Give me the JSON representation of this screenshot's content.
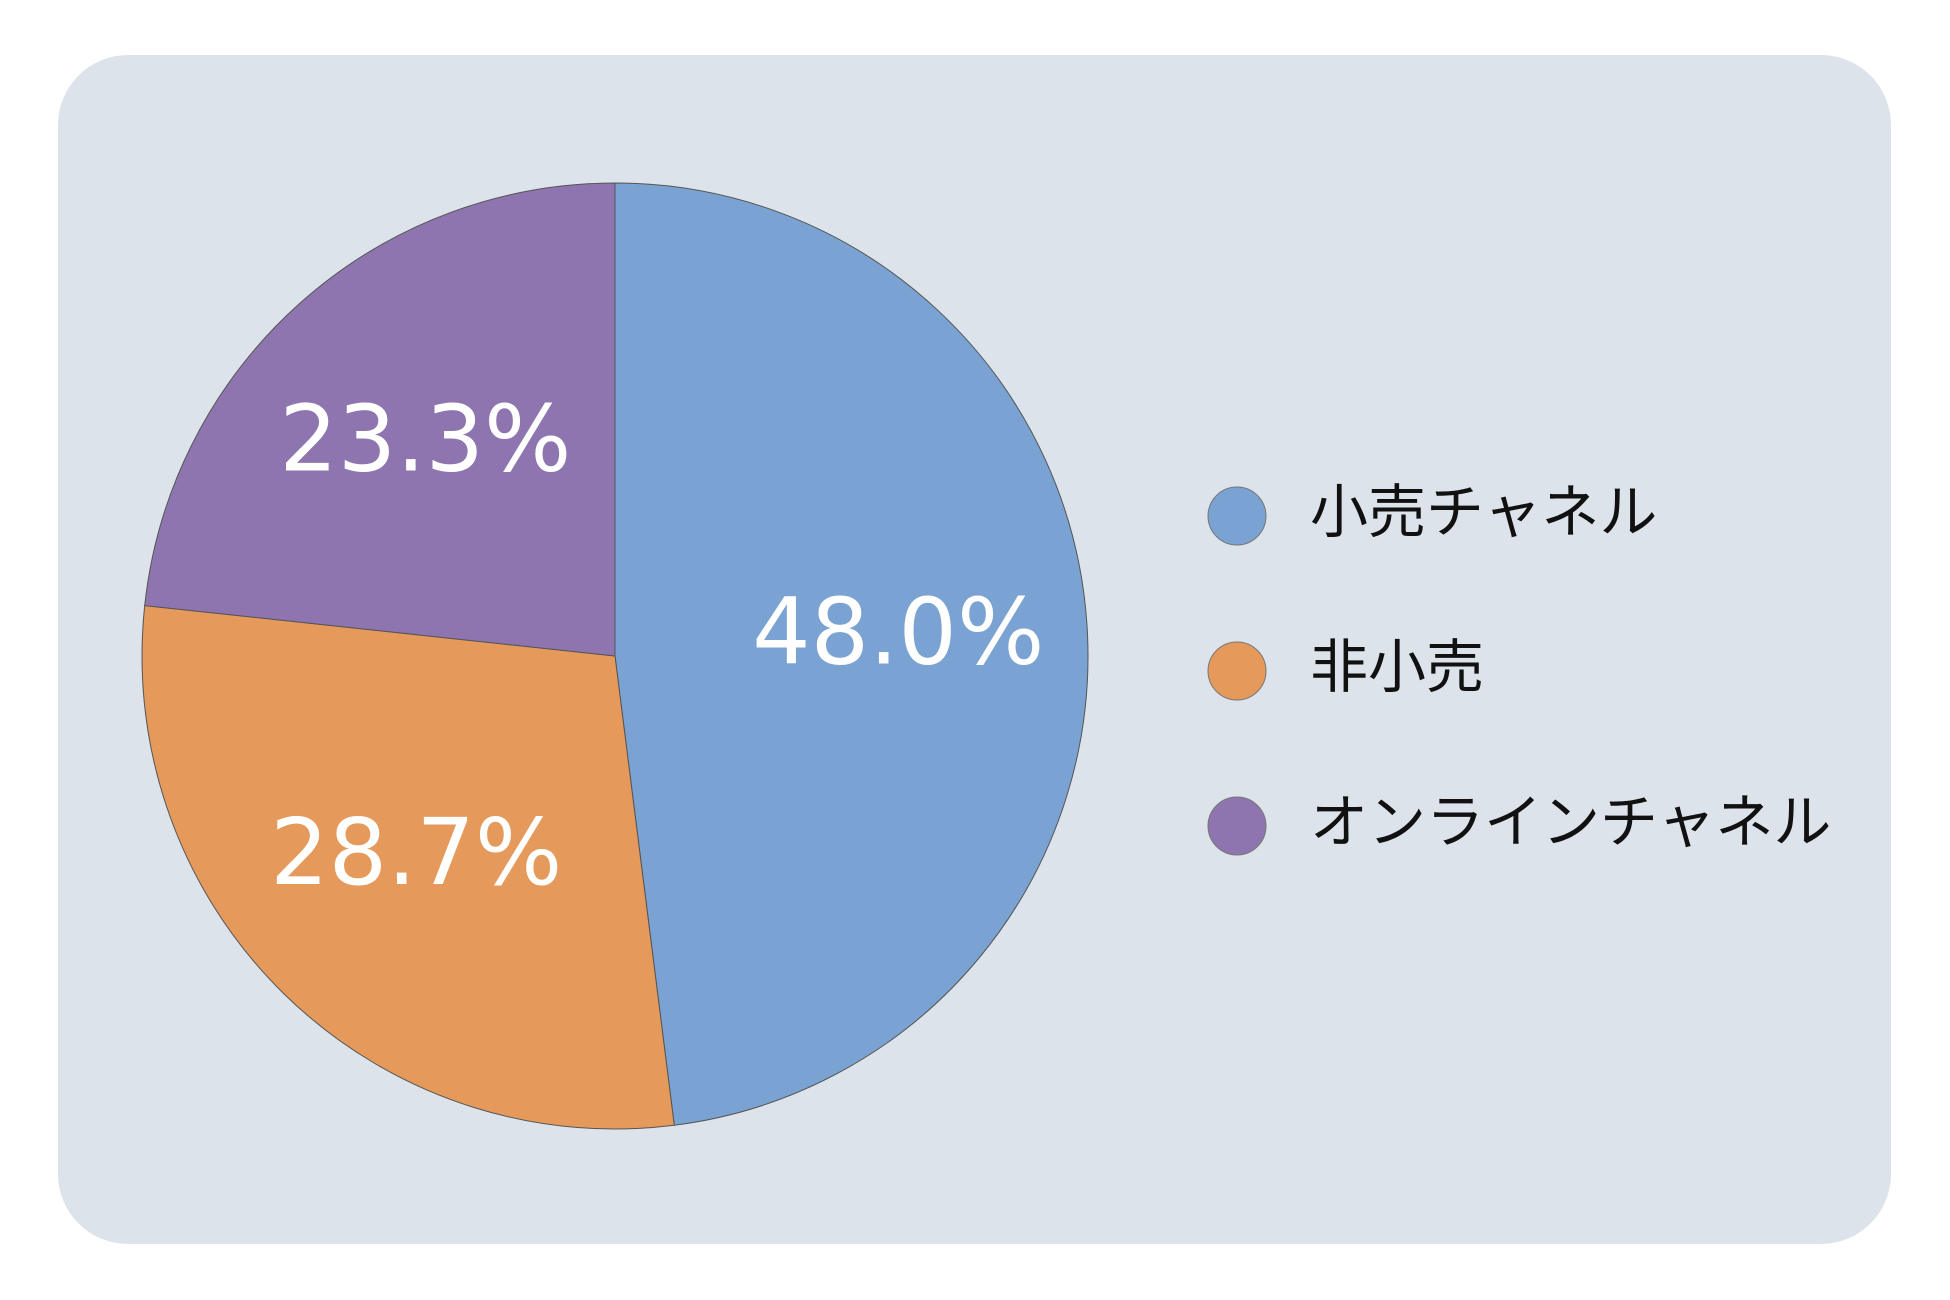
{
  "chart_data": {
    "type": "pie",
    "categories": [
      "小売チャネル",
      "非小売",
      "オンラインチャネル"
    ],
    "values": [
      48.0,
      28.7,
      23.3
    ],
    "value_labels": [
      "48.0%",
      "28.7%",
      "23.3%"
    ],
    "colors": [
      "#7aa2d2",
      "#e59a5c",
      "#8e75b0"
    ]
  }
}
